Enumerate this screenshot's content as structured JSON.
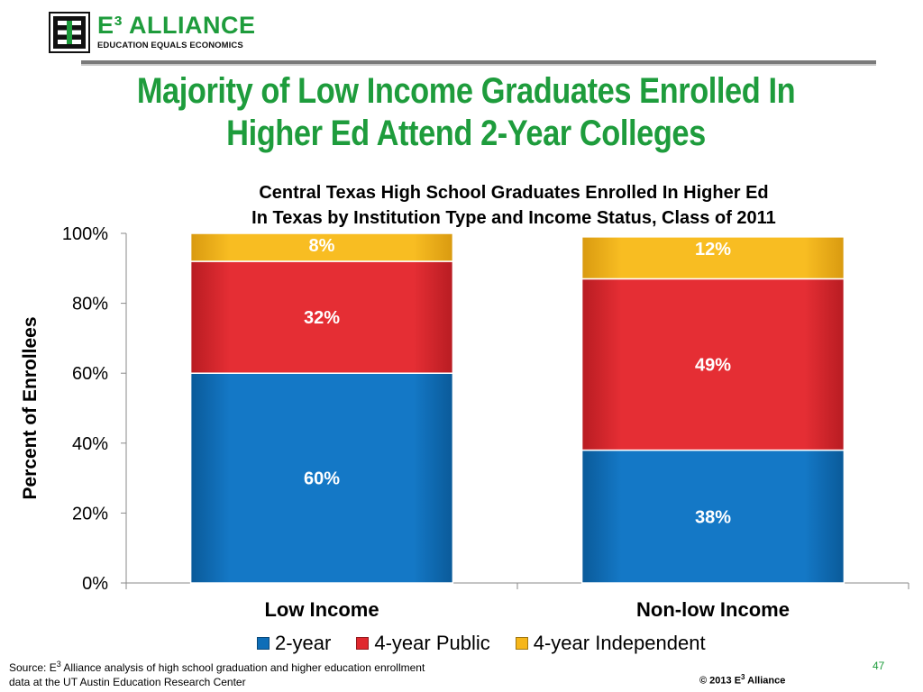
{
  "logo": {
    "word": "E³ ALLIANCE",
    "tagline": "EDUCATION EQUALS ECONOMICS"
  },
  "slide_title": {
    "line1": "Majority of Low Income Graduates Enrolled In",
    "line2": "Higher Ed Attend 2-Year Colleges"
  },
  "colors": {
    "title_green": "#1e9c3c",
    "two_year": "#0e6eb8",
    "four_year_public": "#e0282e",
    "four_year_independent": "#f6b619"
  },
  "chart_data": {
    "type": "bar",
    "stacked": true,
    "title_line1": "Central Texas High School Graduates Enrolled In Higher Ed",
    "title_line2": "In Texas by Institution Type and Income Status, Class of 2011",
    "categories": [
      "Low Income",
      "Non-low Income"
    ],
    "series": [
      {
        "name": "2-year",
        "values": [
          60,
          38
        ],
        "labels": [
          "60%",
          "38%"
        ],
        "color": "#0e6eb8"
      },
      {
        "name": "4-year Public",
        "values": [
          32,
          49
        ],
        "labels": [
          "32%",
          "49%"
        ],
        "color": "#e0282e"
      },
      {
        "name": "4-year Independent",
        "values": [
          8,
          12
        ],
        "labels": [
          "8%",
          "12%"
        ],
        "color": "#f6b619"
      }
    ],
    "xlabel": "",
    "ylabel": "Percent of Enrollees",
    "ylim": [
      0,
      100
    ],
    "yticks": [
      "0%",
      "20%",
      "40%",
      "60%",
      "80%",
      "100%"
    ],
    "grid": false,
    "legend_position": "bottom"
  },
  "footer": {
    "source_prefix": "Source: E",
    "source_sup": "3",
    "source_rest": " Alliance analysis of high school graduation and higher education enrollment",
    "source_line2": "data at the UT Austin Education Research Center",
    "page_number": "47",
    "copyright_prefix": "© 2013 E",
    "copyright_sup": "3",
    "copyright_rest": " Alliance"
  }
}
